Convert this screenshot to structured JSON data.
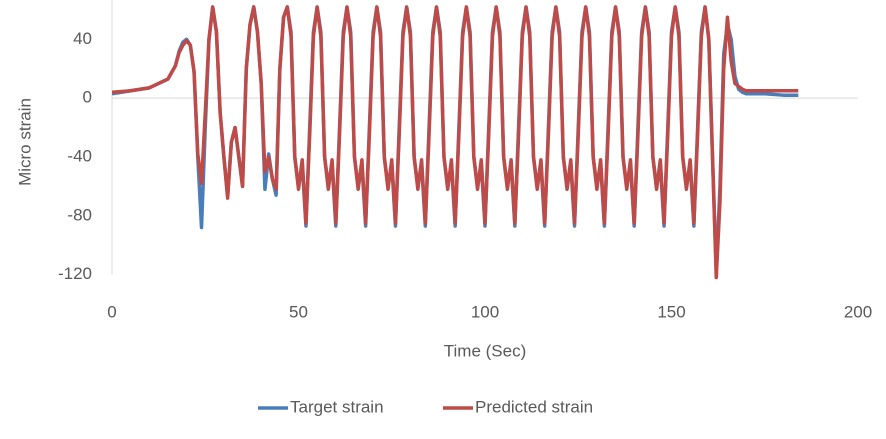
{
  "chart_data": {
    "type": "line",
    "x_label": "Time (Sec)",
    "y_label": "Micro strain",
    "x": [
      0,
      5,
      10,
      15,
      17,
      18,
      19,
      20,
      21,
      22,
      23,
      24,
      25,
      26,
      27,
      28,
      29,
      30,
      31,
      32,
      33,
      34,
      35,
      36,
      37,
      38,
      39,
      40,
      41,
      42,
      43,
      44,
      45,
      46,
      47,
      48,
      49,
      50,
      51,
      52,
      53,
      54,
      55,
      56,
      57,
      58,
      59,
      60,
      61,
      62,
      63,
      64,
      65,
      66,
      67,
      68,
      69,
      70,
      71,
      72,
      73,
      74,
      75,
      76,
      77,
      78,
      79,
      80,
      81,
      82,
      83,
      84,
      85,
      86,
      87,
      88,
      89,
      90,
      91,
      92,
      93,
      94,
      95,
      96,
      97,
      98,
      99,
      100,
      101,
      102,
      103,
      104,
      105,
      106,
      107,
      108,
      109,
      110,
      111,
      112,
      113,
      114,
      115,
      116,
      117,
      118,
      119,
      120,
      121,
      122,
      123,
      124,
      125,
      126,
      127,
      128,
      129,
      130,
      131,
      132,
      133,
      134,
      135,
      136,
      137,
      138,
      139,
      140,
      141,
      142,
      143,
      144,
      145,
      146,
      147,
      148,
      149,
      150,
      151,
      152,
      153,
      154,
      155,
      156,
      157,
      158,
      159,
      160,
      161,
      162,
      163,
      164,
      165,
      166,
      167,
      168,
      169,
      170,
      175,
      180,
      184
    ],
    "series": [
      {
        "name": "Target strain",
        "color": "#4a7ebb",
        "values": [
          3,
          5,
          7,
          13,
          22,
          32,
          38,
          40,
          36,
          18,
          -40,
          -88,
          -20,
          40,
          62,
          45,
          -10,
          -40,
          -66,
          -30,
          -20,
          -40,
          -60,
          20,
          50,
          62,
          45,
          10,
          -62,
          -38,
          -55,
          -66,
          20,
          55,
          62,
          45,
          -40,
          -60,
          -45,
          -87,
          -20,
          45,
          62,
          45,
          -40,
          -60,
          -45,
          -87,
          -20,
          45,
          62,
          45,
          -40,
          -60,
          -45,
          -87,
          -20,
          45,
          62,
          45,
          -40,
          -60,
          -45,
          -87,
          -20,
          45,
          62,
          45,
          -40,
          -60,
          -45,
          -87,
          -20,
          45,
          62,
          45,
          -40,
          -60,
          -45,
          -87,
          -20,
          45,
          62,
          45,
          -40,
          -60,
          -45,
          -87,
          -20,
          45,
          62,
          45,
          -40,
          -60,
          -45,
          -87,
          -20,
          45,
          62,
          45,
          -40,
          -60,
          -45,
          -87,
          -20,
          45,
          62,
          45,
          -40,
          -60,
          -45,
          -87,
          -20,
          45,
          62,
          45,
          -40,
          -60,
          -45,
          -87,
          -20,
          45,
          62,
          45,
          -40,
          -60,
          -45,
          -87,
          -20,
          45,
          62,
          45,
          -40,
          -60,
          -45,
          -87,
          -20,
          45,
          62,
          45,
          -40,
          -60,
          -45,
          -87,
          -20,
          45,
          62,
          40,
          -40,
          -118,
          -60,
          30,
          50,
          40,
          15,
          6,
          4,
          3,
          3,
          2,
          2
        ]
      },
      {
        "name": "Predicted strain",
        "color": "#be4b48",
        "values": [
          4,
          5,
          7,
          13,
          22,
          31,
          36,
          39,
          36,
          18,
          -38,
          -58,
          -10,
          40,
          62,
          45,
          -10,
          -40,
          -68,
          -30,
          -20,
          -40,
          -60,
          20,
          50,
          62,
          45,
          10,
          -50,
          -40,
          -55,
          -62,
          20,
          55,
          62,
          42,
          -40,
          -62,
          -42,
          -85,
          -25,
          42,
          62,
          42,
          -40,
          -62,
          -42,
          -85,
          -25,
          42,
          62,
          42,
          -40,
          -62,
          -42,
          -85,
          -25,
          42,
          62,
          42,
          -40,
          -62,
          -42,
          -85,
          -25,
          42,
          62,
          42,
          -40,
          -62,
          -42,
          -85,
          -25,
          42,
          62,
          42,
          -40,
          -62,
          -42,
          -85,
          -25,
          42,
          62,
          42,
          -40,
          -62,
          -42,
          -85,
          -25,
          42,
          62,
          42,
          -40,
          -62,
          -42,
          -85,
          -25,
          42,
          62,
          42,
          -40,
          -62,
          -42,
          -85,
          -25,
          42,
          62,
          42,
          -40,
          -62,
          -42,
          -85,
          -25,
          42,
          62,
          42,
          -40,
          -62,
          -42,
          -85,
          -25,
          42,
          62,
          42,
          -40,
          -62,
          -42,
          -85,
          -25,
          42,
          62,
          42,
          -40,
          -62,
          -42,
          -85,
          -25,
          42,
          62,
          42,
          -40,
          -62,
          -42,
          -85,
          -25,
          42,
          62,
          40,
          -40,
          -122,
          -70,
          20,
          55,
          25,
          10,
          8,
          6,
          5,
          5,
          5,
          5
        ]
      }
    ],
    "xlim": [
      0,
      200
    ],
    "xticks": [
      0,
      50,
      100,
      150,
      200
    ],
    "ylim": [
      -120,
      60
    ],
    "yticks": [
      -120,
      -80,
      -40,
      0,
      40
    ]
  }
}
